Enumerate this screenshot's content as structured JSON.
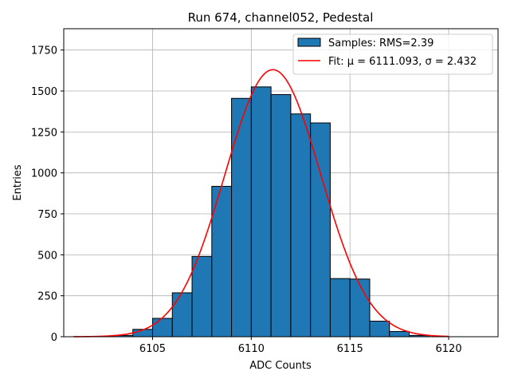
{
  "chart_data": {
    "type": "bar",
    "title": "Run 674, channel052, Pedestal",
    "xlabel": "ADC Counts",
    "ylabel": "Entries",
    "xlim": [
      6100.5,
      6122.5
    ],
    "ylim": [
      0,
      1880
    ],
    "grid": true,
    "x_ticks": [
      6105,
      6110,
      6115,
      6120
    ],
    "y_ticks": [
      0,
      250,
      500,
      750,
      1000,
      1250,
      1500,
      1750
    ],
    "bin_edges_start": 6103,
    "bin_width": 1,
    "histogram_values": [
      8,
      45,
      112,
      268,
      490,
      918,
      1455,
      1525,
      1478,
      1360,
      1305,
      355,
      352,
      95,
      32,
      8
    ],
    "bar_color": "#1f77b4",
    "bar_edge_color": "#000000",
    "fit": {
      "mu": 6111.093,
      "sigma": 2.432,
      "peak": 1630,
      "x_range": [
        6101,
        6120
      ],
      "color": "#ff0000"
    },
    "legend": {
      "position": "upper right",
      "entries": [
        {
          "label": "Samples: RMS=2.39",
          "kind": "patch"
        },
        {
          "label": "Fit: μ = 6111.093, σ = 2.432",
          "kind": "line"
        }
      ]
    }
  }
}
